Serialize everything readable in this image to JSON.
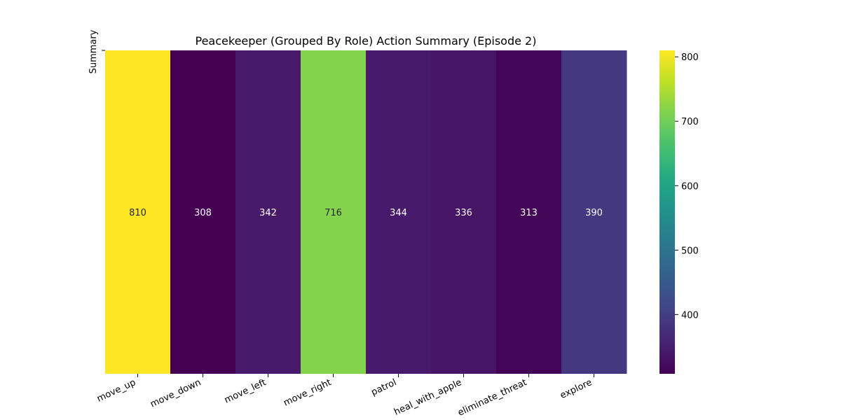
{
  "chart_data": {
    "type": "heatmap",
    "title": "Peacekeeper (Grouped By Role) Action Summary (Episode 2)",
    "xlabel": "",
    "ylabel": "",
    "row_labels": [
      "Summary"
    ],
    "categories": [
      "move_up",
      "move_down",
      "move_left",
      "move_right",
      "patrol",
      "heal_with_apple",
      "eliminate_threat",
      "explore"
    ],
    "values": [
      [
        810,
        308,
        342,
        716,
        344,
        336,
        313,
        390
      ]
    ],
    "colormap": "viridis",
    "vmin": 308,
    "vmax": 810,
    "colorbar_ticks": [
      "400",
      "500",
      "600",
      "700",
      "800"
    ],
    "annotations": true,
    "grid": false,
    "legend": "colorbar-right"
  }
}
